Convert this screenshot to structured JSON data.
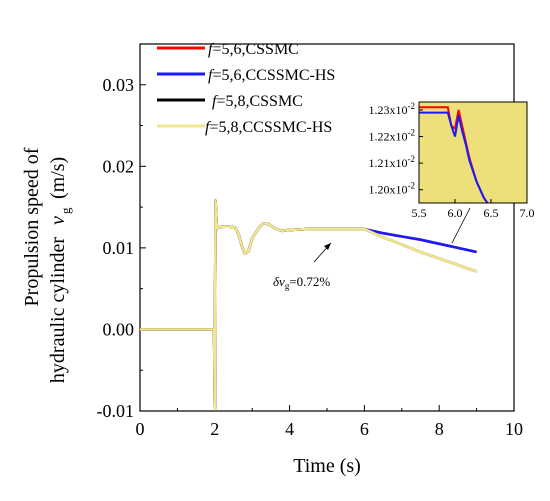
{
  "chart_data": {
    "type": "line",
    "title": "",
    "xlabel": "Time (s)",
    "ylabel_line1": "Propulsion speed of",
    "ylabel_line2": "hydraulic cylinder",
    "ylabel_symbol": "v",
    "ylabel_symbol_sub": "g",
    "ylabel_unit": "(m/s)",
    "xlim": [
      0,
      10
    ],
    "ylim": [
      -0.01,
      0.035
    ],
    "xticks": [
      0,
      2,
      4,
      6,
      8,
      10
    ],
    "xtick_labels": [
      "0",
      "2",
      "4",
      "6",
      "8",
      "10"
    ],
    "yticks": [
      -0.01,
      0.0,
      0.01,
      0.02,
      0.03
    ],
    "ytick_labels": [
      "-0.01",
      "0.00",
      "0.01",
      "0.02",
      "0.03"
    ],
    "grid": false,
    "legend_position": "top-left",
    "series": [
      {
        "name": "f=5,6,CSSMC",
        "legend_italic": "f",
        "legend_rest": "=5,6,CSSMC",
        "color": "#ff0000",
        "x": [
          0,
          1.98,
          2.0,
          2.02,
          2.05,
          2.08,
          2.1,
          2.2,
          2.4,
          2.55,
          2.65,
          2.72,
          2.8,
          2.9,
          3.0,
          3.2,
          3.3,
          3.45,
          3.6,
          3.8,
          4.0,
          4.5,
          5.0,
          5.5,
          6.0,
          6.5,
          7.0,
          7.5,
          8.0,
          8.5,
          9.0
        ],
        "y": [
          0,
          0,
          -0.0098,
          0.0158,
          0.0128,
          0.0124,
          0.0125,
          0.0126,
          0.0126,
          0.0125,
          0.0115,
          0.0103,
          0.0093,
          0.0096,
          0.0112,
          0.0126,
          0.013,
          0.0129,
          0.0124,
          0.0121,
          0.0122,
          0.0123,
          0.0123,
          0.0123,
          0.0123,
          0.0118,
          0.0114,
          0.011,
          0.0105,
          0.01,
          0.0095
        ]
      },
      {
        "name": "f=5,6,CCSSMC-HS",
        "legend_italic": "f",
        "legend_rest": "=5,6,CCSSMC-HS",
        "color": "#1a1aff",
        "x": [
          0,
          1.98,
          2.0,
          2.02,
          2.05,
          2.08,
          2.1,
          2.2,
          2.4,
          2.55,
          2.65,
          2.72,
          2.8,
          2.9,
          3.0,
          3.2,
          3.3,
          3.45,
          3.6,
          3.8,
          4.0,
          4.5,
          5.0,
          5.5,
          6.0,
          6.5,
          7.0,
          7.5,
          8.0,
          8.5,
          9.0
        ],
        "y": [
          0,
          0,
          -0.0098,
          0.0158,
          0.0128,
          0.0124,
          0.0125,
          0.0126,
          0.0126,
          0.0125,
          0.0115,
          0.0103,
          0.0093,
          0.0096,
          0.0112,
          0.0126,
          0.013,
          0.0129,
          0.0124,
          0.0121,
          0.0122,
          0.0123,
          0.0123,
          0.0123,
          0.0123,
          0.0118,
          0.0114,
          0.011,
          0.0105,
          0.01,
          0.0095
        ]
      },
      {
        "name": "f=5,8,CSSMC",
        "legend_italic": "f",
        "legend_rest": "=5,8,CSSMC",
        "color": "#000000",
        "x": [
          0,
          1.98,
          2.0,
          2.02,
          2.05,
          2.08,
          2.1,
          2.2,
          2.4,
          2.55,
          2.65,
          2.72,
          2.8,
          2.9,
          3.0,
          3.2,
          3.3,
          3.45,
          3.6,
          3.8,
          4.0,
          4.5,
          5.0,
          5.5,
          6.0,
          6.5,
          7.0,
          7.5,
          8.0,
          8.5,
          9.0
        ],
        "y": [
          0,
          0,
          -0.0098,
          0.0158,
          0.0128,
          0.0124,
          0.0125,
          0.0126,
          0.0126,
          0.0125,
          0.0115,
          0.0103,
          0.0093,
          0.0096,
          0.0112,
          0.0126,
          0.013,
          0.0129,
          0.0124,
          0.0121,
          0.0122,
          0.0123,
          0.0123,
          0.0123,
          0.0123,
          0.0113,
          0.0104,
          0.0095,
          0.0087,
          0.0079,
          0.0071
        ]
      },
      {
        "name": "f=5,8,CCSSMC-HS",
        "legend_italic": "f",
        "legend_rest": "=5,8,CCSSMC-HS",
        "color": "#f0e68c",
        "x": [
          0,
          1.98,
          2.0,
          2.02,
          2.05,
          2.08,
          2.1,
          2.2,
          2.4,
          2.55,
          2.65,
          2.72,
          2.8,
          2.9,
          3.0,
          3.2,
          3.3,
          3.45,
          3.6,
          3.8,
          4.0,
          4.5,
          5.0,
          5.5,
          6.0,
          6.5,
          7.0,
          7.5,
          8.0,
          8.5,
          9.0
        ],
        "y": [
          0,
          0,
          -0.0098,
          0.0158,
          0.0128,
          0.0124,
          0.0125,
          0.0126,
          0.0126,
          0.0125,
          0.0115,
          0.0103,
          0.0093,
          0.0096,
          0.0112,
          0.0126,
          0.013,
          0.0129,
          0.0124,
          0.0121,
          0.0122,
          0.0123,
          0.0123,
          0.0123,
          0.0123,
          0.0113,
          0.0104,
          0.0095,
          0.0087,
          0.0079,
          0.0071
        ]
      }
    ],
    "annotation": {
      "prefix": "δv",
      "sub": "g",
      "suffix": "=0.72%"
    },
    "inset": {
      "xlim": [
        5.5,
        7.0
      ],
      "ylim": [
        0.01195,
        0.01233
      ],
      "background": "#ede07a",
      "xticks": [
        5.5,
        6.0,
        6.5,
        7.0
      ],
      "xtick_labels": [
        "5.5",
        "6.0",
        "6.5",
        "7.0"
      ],
      "yticks": [
        0.012,
        0.0121,
        0.0122,
        0.0123
      ],
      "ytick_bases": [
        "1.20x10",
        "1.21x10",
        "1.22x10",
        "1.23x10"
      ],
      "ytick_exponent": "-2",
      "series": [
        {
          "name": "f=5,6,CSSMC",
          "color": "#ff0000",
          "x": [
            5.5,
            5.6,
            5.7,
            5.8,
            5.9,
            5.95,
            6.0,
            6.05,
            6.1,
            6.15,
            6.2,
            6.3,
            6.4,
            6.45
          ],
          "y": [
            0.01231,
            0.01231,
            0.01231,
            0.01231,
            0.01231,
            0.01224,
            0.01223,
            0.0123,
            0.01224,
            0.01218,
            0.01212,
            0.01203,
            0.01197,
            0.01195
          ]
        },
        {
          "name": "f=5,6,CCSSMC-HS",
          "color": "#1a1aff",
          "x": [
            5.5,
            5.6,
            5.7,
            5.8,
            5.9,
            5.95,
            6.0,
            6.05,
            6.1,
            6.15,
            6.2,
            6.3,
            6.4,
            6.45
          ],
          "y": [
            0.01229,
            0.01229,
            0.01229,
            0.01229,
            0.01229,
            0.01224,
            0.0122,
            0.01228,
            0.01222,
            0.01217,
            0.01211,
            0.01203,
            0.01197,
            0.01195
          ]
        }
      ]
    }
  }
}
